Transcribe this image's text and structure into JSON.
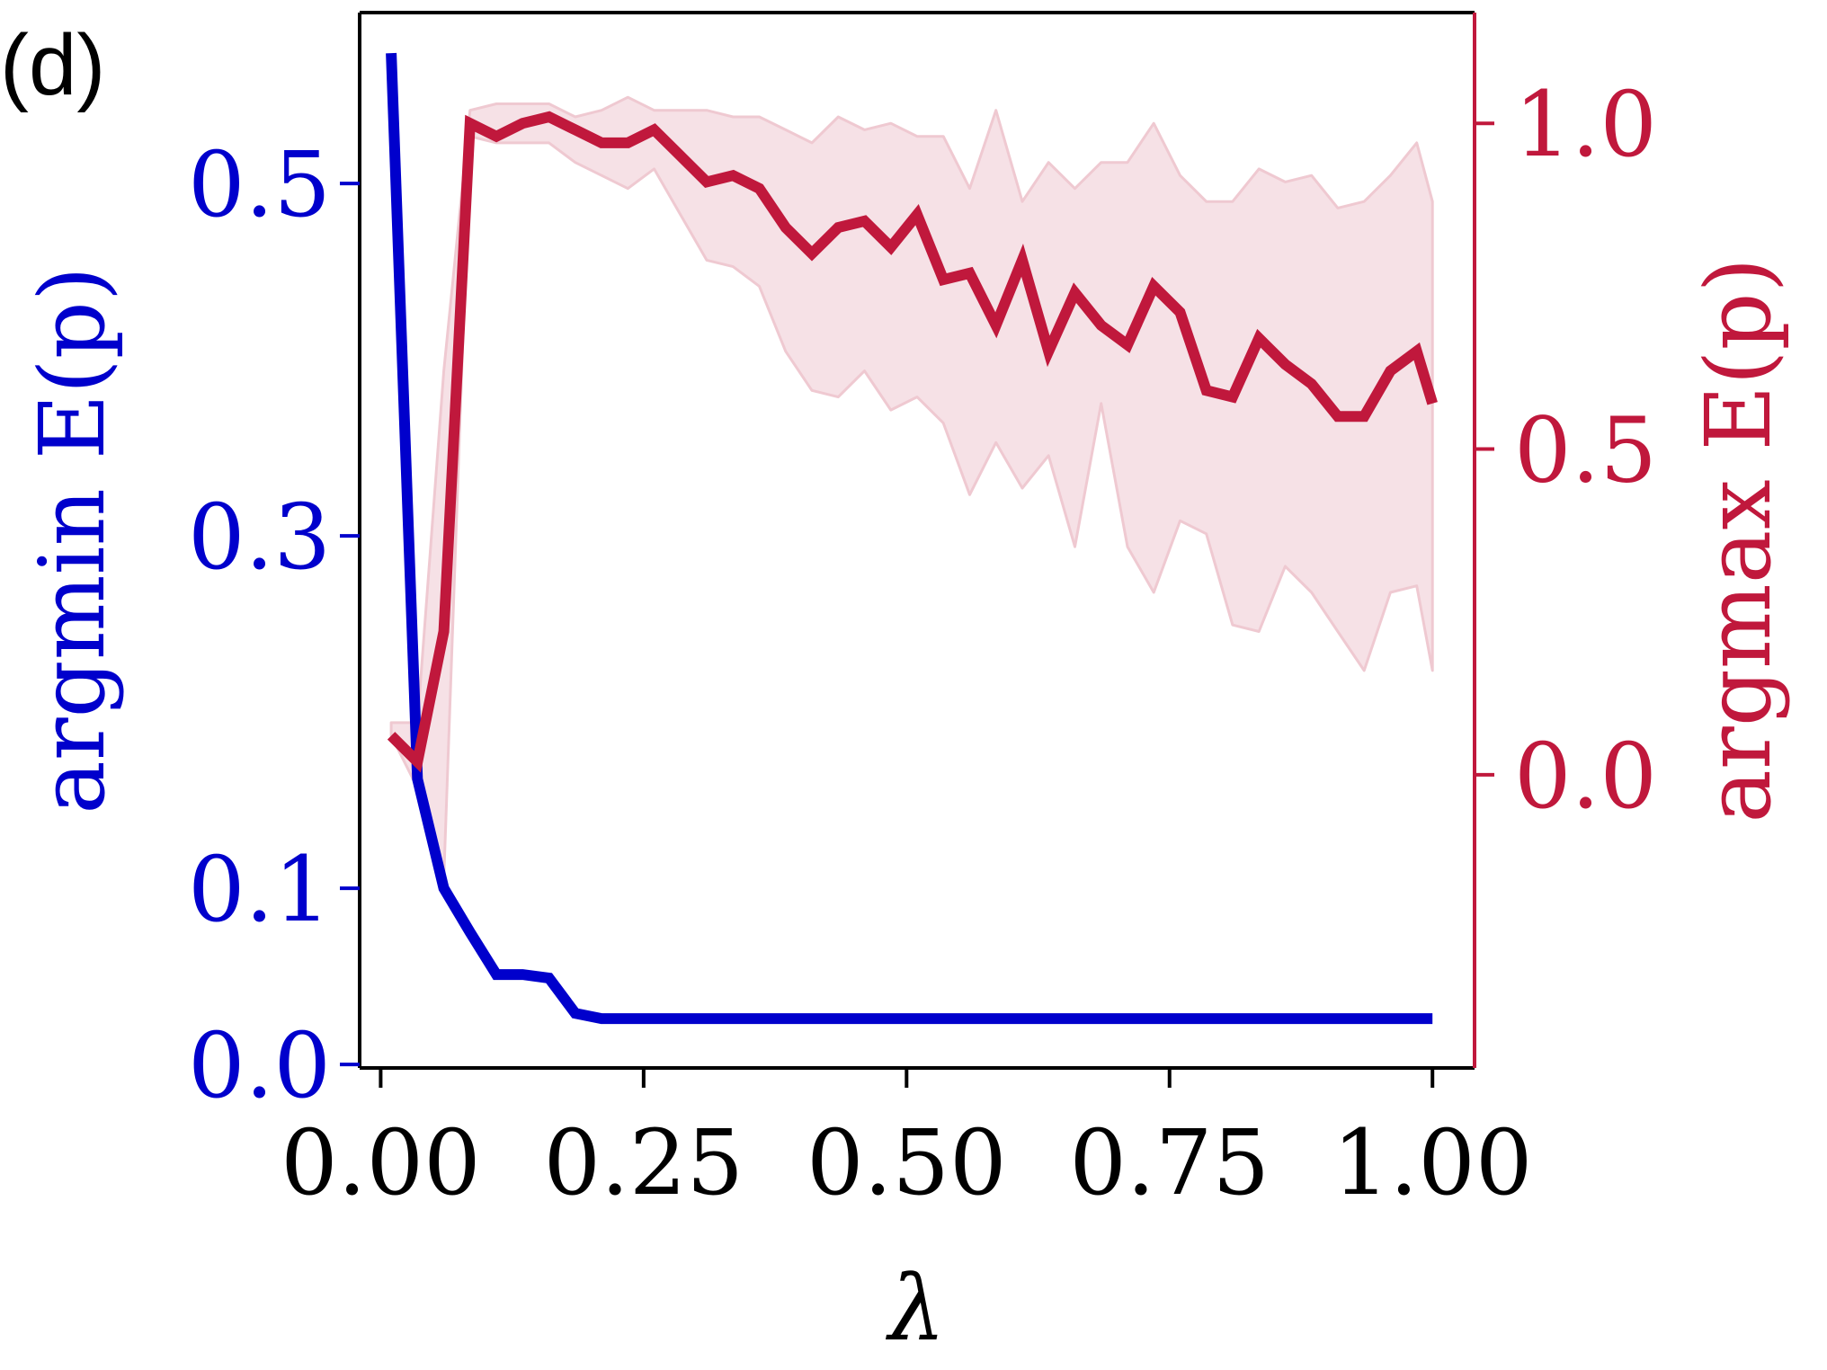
{
  "panel_label": "(d)",
  "colors": {
    "left_series": "#0000cc",
    "right_series": "#c0183c",
    "band_fill": "#f6e1e6",
    "band_edge": "#efc9d1",
    "axis": "#000000"
  },
  "chart_data": {
    "type": "line",
    "xlabel": "λ",
    "ylabel_left": "argmin E(p)",
    "ylabel_right": "argmax E(p)",
    "xlim": [
      -0.02,
      1.04
    ],
    "ylim_left": [
      -0.002,
      0.597
    ],
    "ylim_right": [
      -0.45,
      1.17
    ],
    "xticks": [
      0.0,
      0.25,
      0.5,
      0.75,
      1.0
    ],
    "xtick_labels": [
      "0.00",
      "0.25",
      "0.50",
      "0.75",
      "1.00"
    ],
    "yticks_left": [
      0.0,
      0.1,
      0.3,
      0.5
    ],
    "ytick_labels_left": [
      "0.0",
      "0.1",
      "0.3",
      "0.5"
    ],
    "yticks_right": [
      0.0,
      0.5,
      1.0
    ],
    "ytick_labels_right": [
      "0.0",
      "0.5",
      "1.0"
    ],
    "x": [
      0.01,
      0.035,
      0.06,
      0.085,
      0.11,
      0.135,
      0.16,
      0.185,
      0.21,
      0.235,
      0.26,
      0.285,
      0.31,
      0.335,
      0.36,
      0.385,
      0.41,
      0.435,
      0.46,
      0.485,
      0.51,
      0.535,
      0.56,
      0.585,
      0.61,
      0.635,
      0.66,
      0.685,
      0.71,
      0.735,
      0.76,
      0.785,
      0.81,
      0.835,
      0.86,
      0.885,
      0.91,
      0.935,
      0.96,
      0.985,
      1.0
    ],
    "series": [
      {
        "axis": "left",
        "values": [
          0.574,
          0.162,
          0.1,
          0.075,
          0.051,
          0.051,
          0.049,
          0.029,
          0.026,
          0.026,
          0.026,
          0.026,
          0.026,
          0.026,
          0.026,
          0.026,
          0.026,
          0.026,
          0.026,
          0.026,
          0.026,
          0.026,
          0.026,
          0.026,
          0.026,
          0.026,
          0.026,
          0.026,
          0.026,
          0.026,
          0.026,
          0.026,
          0.026,
          0.026,
          0.026,
          0.026,
          0.026,
          0.026,
          0.026,
          0.026,
          0.026
        ]
      },
      {
        "axis": "right",
        "values": [
          0.06,
          0.02,
          0.22,
          1.0,
          0.98,
          1.0,
          1.01,
          0.99,
          0.97,
          0.97,
          0.99,
          0.95,
          0.91,
          0.92,
          0.9,
          0.84,
          0.8,
          0.84,
          0.85,
          0.81,
          0.86,
          0.76,
          0.77,
          0.69,
          0.79,
          0.65,
          0.74,
          0.69,
          0.66,
          0.75,
          0.71,
          0.59,
          0.58,
          0.67,
          0.63,
          0.6,
          0.55,
          0.55,
          0.62,
          0.65,
          0.57
        ],
        "upper": [
          0.08,
          0.08,
          0.62,
          1.02,
          1.03,
          1.03,
          1.03,
          1.01,
          1.02,
          1.04,
          1.02,
          1.02,
          1.02,
          1.01,
          1.01,
          0.99,
          0.97,
          1.01,
          0.99,
          1.0,
          0.98,
          0.98,
          0.9,
          1.02,
          0.88,
          0.94,
          0.9,
          0.94,
          0.94,
          1.0,
          0.92,
          0.88,
          0.88,
          0.93,
          0.91,
          0.92,
          0.87,
          0.88,
          0.92,
          0.97,
          0.88
        ],
        "lower": [
          0.06,
          -0.02,
          -0.16,
          0.98,
          0.97,
          0.97,
          0.97,
          0.94,
          0.92,
          0.9,
          0.93,
          0.86,
          0.79,
          0.78,
          0.75,
          0.65,
          0.59,
          0.58,
          0.62,
          0.56,
          0.58,
          0.54,
          0.43,
          0.51,
          0.44,
          0.49,
          0.35,
          0.57,
          0.35,
          0.28,
          0.39,
          0.37,
          0.23,
          0.22,
          0.32,
          0.28,
          0.22,
          0.16,
          0.28,
          0.29,
          0.16
        ]
      }
    ],
    "grid": false
  }
}
